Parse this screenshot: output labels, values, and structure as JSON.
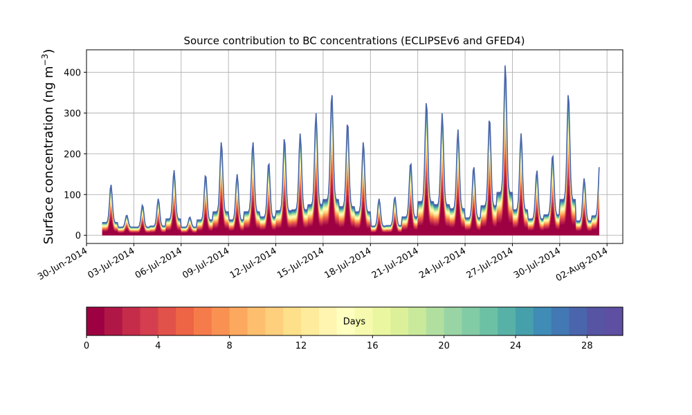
{
  "chart_data": {
    "type": "area",
    "title": "Source contribution to BC concentrations (ECLIPSEv6 and GFED4)",
    "ylabel_main": "Surface concentration (ng m",
    "ylabel_sup": "−3",
    "ylabel_close": ")",
    "xlabel": "",
    "ylim": [
      -20,
      455
    ],
    "xlim": [
      "2014-06-30",
      "2014-08-03"
    ],
    "grid": true,
    "x_tick_labels": [
      "30-Jun-2014",
      "03-Jul-2014",
      "06-Jul-2014",
      "09-Jul-2014",
      "12-Jul-2014",
      "15-Jul-2014",
      "18-Jul-2014",
      "21-Jul-2014",
      "24-Jul-2014",
      "27-Jul-2014",
      "30-Jul-2014",
      "02-Aug-2014"
    ],
    "y_tick_labels": [
      "0",
      "100",
      "200",
      "300",
      "400"
    ],
    "y_ticks": [
      0,
      100,
      200,
      300,
      400
    ],
    "series_description": "stacked contributions by emission age (days 0-30)",
    "total_series": {
      "x": [
        "2014-07-01",
        "2014-07-02",
        "2014-07-03",
        "2014-07-04",
        "2014-07-05",
        "2014-07-06",
        "2014-07-07",
        "2014-07-08",
        "2014-07-09",
        "2014-07-10",
        "2014-07-11",
        "2014-07-12",
        "2014-07-13",
        "2014-07-14",
        "2014-07-15",
        "2014-07-16",
        "2014-07-17",
        "2014-07-18",
        "2014-07-19",
        "2014-07-20",
        "2014-07-21",
        "2014-07-22",
        "2014-07-23",
        "2014-07-24",
        "2014-07-25",
        "2014-07-26",
        "2014-07-27",
        "2014-07-28",
        "2014-07-29",
        "2014-07-30",
        "2014-07-31",
        "2014-08-01"
      ],
      "y": [
        125,
        50,
        75,
        90,
        160,
        45,
        150,
        230,
        150,
        230,
        180,
        240,
        250,
        300,
        350,
        280,
        230,
        90,
        95,
        180,
        330,
        300,
        260,
        170,
        290,
        420,
        250,
        160,
        200,
        350,
        140,
        190
      ]
    },
    "colorbar": {
      "label": "Days",
      "min": 0,
      "max": 30,
      "tick_labels": [
        "0",
        "4",
        "8",
        "12",
        "16",
        "20",
        "24",
        "28"
      ],
      "ticks": [
        0,
        4,
        8,
        12,
        16,
        20,
        24,
        28
      ],
      "colors": [
        "#9e0142",
        "#b01747",
        "#c42c4a",
        "#d53e4f",
        "#e1524a",
        "#ed6545",
        "#f67b4a",
        "#f99153",
        "#fca85e",
        "#fdbe6e",
        "#fecf7d",
        "#fee08b",
        "#feeb9b",
        "#fff5b0",
        "#ffffbf",
        "#f5faae",
        "#ebf7a0",
        "#dcf09a",
        "#c9e99b",
        "#b1df9f",
        "#99d5a4",
        "#81cba5",
        "#6cc1a5",
        "#58b1a7",
        "#45a0ab",
        "#3f8cb6",
        "#4278b3",
        "#4a65ac",
        "#5654a3",
        "#5e4fa2"
      ]
    }
  }
}
